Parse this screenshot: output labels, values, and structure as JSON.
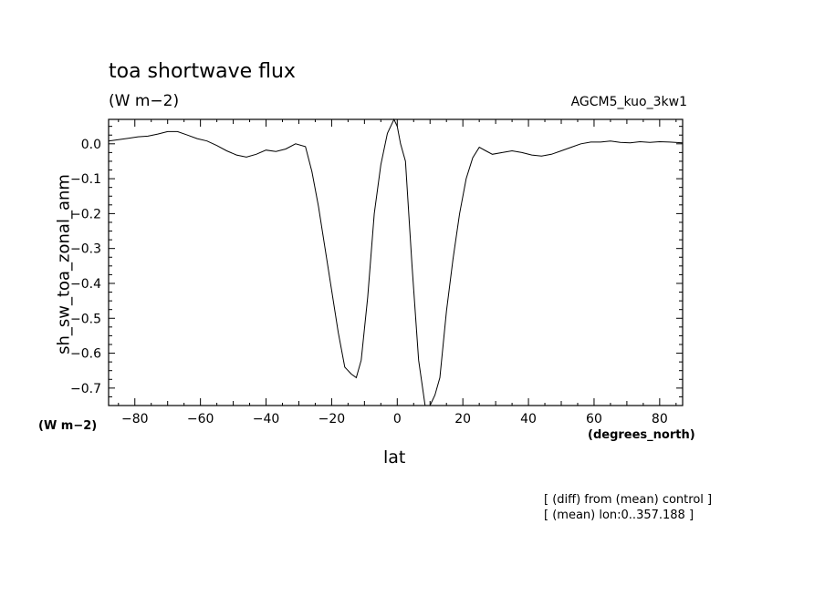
{
  "header": {
    "title": "toa shortwave flux",
    "units": "(W m−2)",
    "run": "AGCM5_kuo_3kw1"
  },
  "footnotes": [
    "[ (diff) from (mean) control ]",
    "[ (mean) lon:0..357.188 ]"
  ],
  "chart_data": {
    "type": "line",
    "title": "toa shortwave flux",
    "subtitle": "AGCM5_kuo_3kw1",
    "xlabel": "lat",
    "xunits": "(degrees_north)",
    "ylabel": "sh_sw_toa_zonal_anm",
    "yunits": "(W m−2)",
    "xlim": [
      -88,
      87
    ],
    "ylim": [
      -0.75,
      0.07
    ],
    "grid": false,
    "xticks": [
      -80,
      -60,
      -40,
      -20,
      0,
      20,
      40,
      60,
      80
    ],
    "xtick_labels": [
      "−80",
      "−60",
      "−40",
      "−20",
      "0",
      "20",
      "40",
      "60",
      "80"
    ],
    "yticks": [
      0.0,
      -0.1,
      -0.2,
      -0.3,
      -0.4,
      -0.5,
      -0.6,
      -0.7
    ],
    "ytick_labels": [
      "0.0",
      "−0.1",
      "−0.2",
      "−0.3",
      "−0.4",
      "−0.5",
      "−0.6",
      "−0.7"
    ],
    "series": [
      {
        "color": "#000000",
        "x": [
          -88,
          -85,
          -82,
          -79,
          -76,
          -73,
          -70,
          -67,
          -64,
          -61,
          -58,
          -55,
          -52,
          -49,
          -46,
          -43,
          -40,
          -37,
          -34,
          -31,
          -28,
          -26,
          -24,
          -22,
          -20,
          -18,
          -16,
          -14,
          -12.5,
          -11,
          -9,
          -7,
          -5,
          -3,
          -1,
          0,
          1,
          2.5,
          4.5,
          6.5,
          8.5,
          10,
          11.5,
          13,
          15,
          17,
          19,
          21,
          23,
          25,
          27,
          29,
          32,
          35,
          38,
          41,
          44,
          47,
          50,
          53,
          56,
          59,
          62,
          65,
          68,
          71,
          74,
          77,
          80,
          83,
          87
        ],
        "y": [
          0.008,
          0.012,
          0.016,
          0.02,
          0.022,
          0.028,
          0.035,
          0.035,
          0.025,
          0.015,
          0.008,
          -0.005,
          -0.02,
          -0.032,
          -0.038,
          -0.03,
          -0.018,
          -0.022,
          -0.015,
          0.0,
          -0.008,
          -0.08,
          -0.18,
          -0.3,
          -0.42,
          -0.54,
          -0.64,
          -0.66,
          -0.67,
          -0.62,
          -0.44,
          -0.2,
          -0.06,
          0.03,
          0.07,
          0.05,
          0.0,
          -0.05,
          -0.35,
          -0.62,
          -0.75,
          -0.75,
          -0.72,
          -0.67,
          -0.48,
          -0.33,
          -0.2,
          -0.1,
          -0.04,
          -0.01,
          -0.02,
          -0.03,
          -0.025,
          -0.02,
          -0.025,
          -0.032,
          -0.035,
          -0.03,
          -0.02,
          -0.01,
          0.0,
          0.005,
          0.005,
          0.008,
          0.004,
          0.003,
          0.006,
          0.004,
          0.006,
          0.005,
          0.003
        ]
      }
    ]
  }
}
